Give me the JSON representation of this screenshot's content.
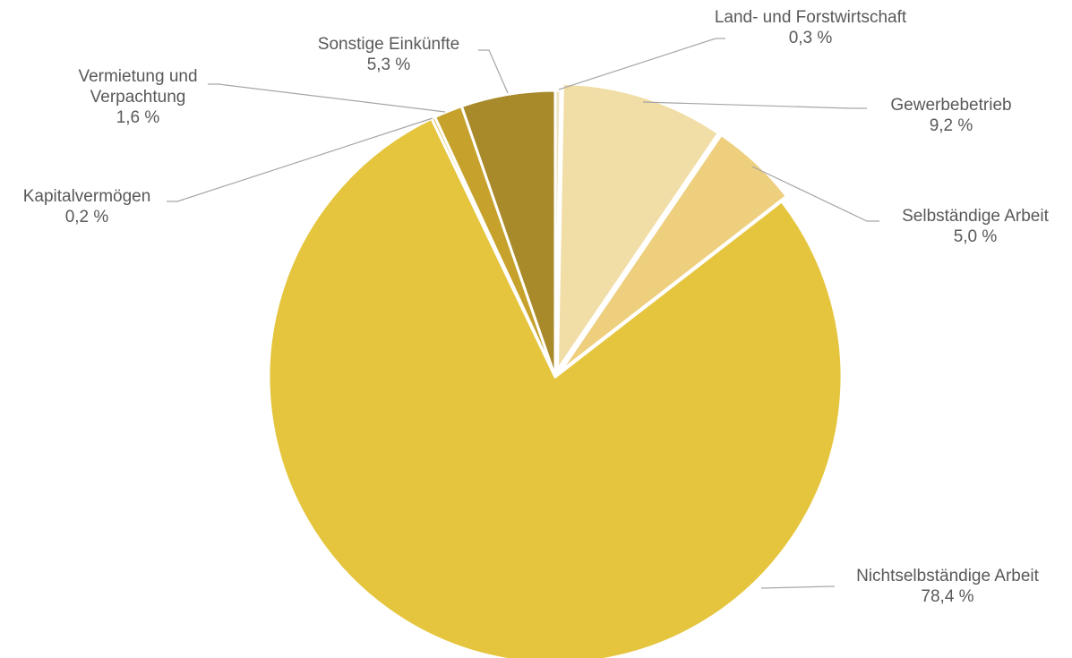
{
  "chart_data": {
    "type": "pie",
    "title": "",
    "slices": [
      {
        "label_lines": [
          "Land- und Forstwirtschaft"
        ],
        "value_label": "0,3 %",
        "value": 0.3,
        "color": "#EFE3C0"
      },
      {
        "label_lines": [
          "Gewerbebetrieb"
        ],
        "value_label": "9,2 %",
        "value": 9.2,
        "color": "#F1DDA6"
      },
      {
        "label_lines": [
          "Selbständige Arbeit"
        ],
        "value_label": "5,0 %",
        "value": 5.0,
        "color": "#EDCF7E"
      },
      {
        "label_lines": [
          "Nichtselbständige Arbeit"
        ],
        "value_label": "78,4 %",
        "value": 78.4,
        "color": "#E5C53D"
      },
      {
        "label_lines": [
          "Kapitalvermögen"
        ],
        "value_label": "0,2 %",
        "value": 0.2,
        "color": "#D9B534"
      },
      {
        "label_lines": [
          "Vermietung und",
          "Verpachtung"
        ],
        "value_label": "1,6 %",
        "value": 1.6,
        "color": "#C6A22C"
      },
      {
        "label_lines": [
          "Sonstige Einkünfte"
        ],
        "value_label": "5,3 %",
        "value": 5.3,
        "color": "#A88A2B"
      }
    ]
  }
}
